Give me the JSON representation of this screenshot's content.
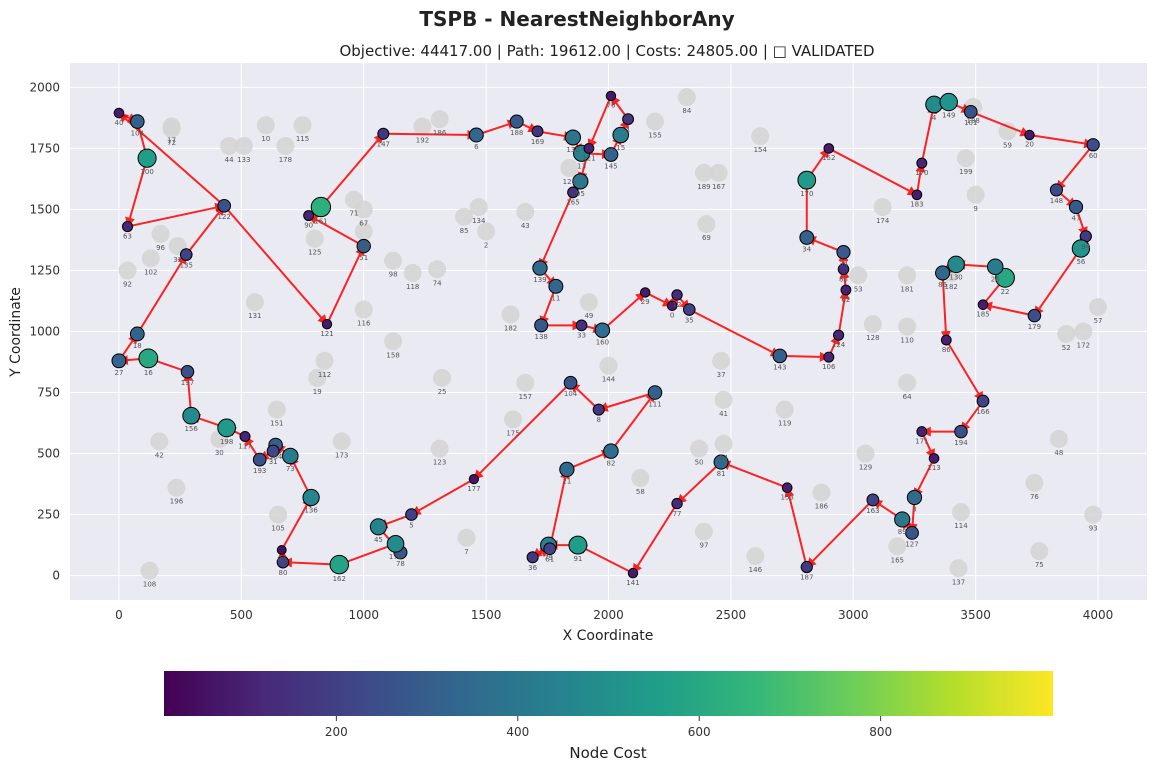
{
  "chart_data": {
    "type": "scatter",
    "title": "TSPB - NearestNeighborAny",
    "subtitle": "Objective: 44417.00 | Path: 19612.00 | Costs: 24805.00 | □ VALIDATED",
    "xlabel": "X Coordinate",
    "ylabel": "Y Coordinate",
    "xlim": [
      -200,
      4200
    ],
    "ylim": [
      -100,
      2100
    ],
    "xticks": [
      0,
      500,
      1000,
      1500,
      2000,
      2500,
      3000,
      3500,
      4000
    ],
    "yticks": [
      0,
      250,
      500,
      750,
      1000,
      1250,
      1500,
      1750,
      2000
    ],
    "grid": true,
    "colorbar": {
      "label": "Node Cost",
      "range": [
        10,
        990
      ],
      "ticks": [
        200,
        400,
        600,
        800
      ],
      "colormap": [
        "#440154",
        "#482878",
        "#3e4989",
        "#31688e",
        "#26828e",
        "#1f9e89",
        "#35b779",
        "#6ece58",
        "#b5de2b",
        "#fde725"
      ]
    },
    "path_color": "#ff0000",
    "unselected_color": "#d3d3d3",
    "unselected_nodes": [
      {
        "id": "17",
        "x": 215,
        "y": 1840,
        "cost": 0
      },
      {
        "id": "72",
        "x": 215,
        "y": 1830,
        "cost": 0
      },
      {
        "id": "44",
        "x": 450,
        "y": 1760,
        "cost": 0
      },
      {
        "id": "133",
        "x": 510,
        "y": 1760,
        "cost": 0
      },
      {
        "id": "10",
        "x": 600,
        "y": 1845,
        "cost": 0
      },
      {
        "id": "178",
        "x": 680,
        "y": 1760,
        "cost": 0
      },
      {
        "id": "115",
        "x": 750,
        "y": 1845,
        "cost": 0
      },
      {
        "id": "192",
        "x": 1240,
        "y": 1840,
        "cost": 0
      },
      {
        "id": "186",
        "x": 1310,
        "y": 1870,
        "cost": 0
      },
      {
        "id": "71",
        "x": 960,
        "y": 1540,
        "cost": 0
      },
      {
        "id": "67",
        "x": 1000,
        "y": 1500,
        "cost": 0
      },
      {
        "id": "120",
        "x": 1000,
        "y": 1410,
        "cost": 0
      },
      {
        "id": "125",
        "x": 800,
        "y": 1380,
        "cost": 0
      },
      {
        "id": "96",
        "x": 170,
        "y": 1400,
        "cost": 0
      },
      {
        "id": "32",
        "x": 240,
        "y": 1350,
        "cost": 0
      },
      {
        "id": "102",
        "x": 130,
        "y": 1300,
        "cost": 0
      },
      {
        "id": "92",
        "x": 35,
        "y": 1250,
        "cost": 0
      },
      {
        "id": "131",
        "x": 555,
        "y": 1120,
        "cost": 0
      },
      {
        "id": "98",
        "x": 1120,
        "y": 1290,
        "cost": 0
      },
      {
        "id": "118",
        "x": 1200,
        "y": 1240,
        "cost": 0
      },
      {
        "id": "74",
        "x": 1300,
        "y": 1255,
        "cost": 0
      },
      {
        "id": "116",
        "x": 1000,
        "y": 1090,
        "cost": 0
      },
      {
        "id": "158",
        "x": 1120,
        "y": 960,
        "cost": 0
      },
      {
        "id": "112",
        "x": 840,
        "y": 880,
        "cost": 0
      },
      {
        "id": "19",
        "x": 810,
        "y": 810,
        "cost": 0
      },
      {
        "id": "25",
        "x": 1320,
        "y": 810,
        "cost": 0
      },
      {
        "id": "151",
        "x": 645,
        "y": 680,
        "cost": 0
      },
      {
        "id": "173",
        "x": 910,
        "y": 550,
        "cost": 0
      },
      {
        "id": "42",
        "x": 165,
        "y": 550,
        "cost": 0
      },
      {
        "id": "30",
        "x": 410,
        "y": 560,
        "cost": 0
      },
      {
        "id": "196",
        "x": 235,
        "y": 360,
        "cost": 0
      },
      {
        "id": "105",
        "x": 650,
        "y": 250,
        "cost": 0
      },
      {
        "id": "108",
        "x": 125,
        "y": 20,
        "cost": 0
      },
      {
        "id": "123",
        "x": 1310,
        "y": 520,
        "cost": 0
      },
      {
        "id": "7",
        "x": 1420,
        "y": 155,
        "cost": 0
      },
      {
        "id": "175",
        "x": 1610,
        "y": 640,
        "cost": 0
      },
      {
        "id": "157",
        "x": 1660,
        "y": 790,
        "cost": 0
      },
      {
        "id": "85",
        "x": 1410,
        "y": 1470,
        "cost": 0
      },
      {
        "id": "134",
        "x": 1470,
        "y": 1510,
        "cost": 0
      },
      {
        "id": "2",
        "x": 1500,
        "y": 1410,
        "cost": 0
      },
      {
        "id": "43",
        "x": 1660,
        "y": 1490,
        "cost": 0
      },
      {
        "id": "182",
        "x": 1600,
        "y": 1070,
        "cost": 0
      },
      {
        "id": "49",
        "x": 1920,
        "y": 1120,
        "cost": 0
      },
      {
        "id": "144",
        "x": 2000,
        "y": 860,
        "cost": 0
      },
      {
        "id": "126",
        "x": 1840,
        "y": 1670,
        "cost": 0
      },
      {
        "id": "155",
        "x": 2190,
        "y": 1860,
        "cost": 0
      },
      {
        "id": "84",
        "x": 2320,
        "y": 1960,
        "cost": 0
      },
      {
        "id": "154",
        "x": 2620,
        "y": 1800,
        "cost": 0
      },
      {
        "id": "189",
        "x": 2390,
        "y": 1650,
        "cost": 0
      },
      {
        "id": "167",
        "x": 2450,
        "y": 1650,
        "cost": 0
      },
      {
        "id": "69",
        "x": 2400,
        "y": 1440,
        "cost": 0
      },
      {
        "id": "37",
        "x": 2460,
        "y": 880,
        "cost": 0
      },
      {
        "id": "41",
        "x": 2470,
        "y": 720,
        "cost": 0
      },
      {
        "id": "14",
        "x": 2470,
        "y": 540,
        "cost": 0
      },
      {
        "id": "50",
        "x": 2370,
        "y": 520,
        "cost": 0
      },
      {
        "id": "58",
        "x": 2130,
        "y": 400,
        "cost": 0
      },
      {
        "id": "97",
        "x": 2390,
        "y": 180,
        "cost": 0
      },
      {
        "id": "119",
        "x": 2720,
        "y": 680,
        "cost": 0
      },
      {
        "id": "146",
        "x": 2600,
        "y": 80,
        "cost": 0
      },
      {
        "id": "186b",
        "x": 2870,
        "y": 340,
        "cost": 0
      },
      {
        "id": "129",
        "x": 3050,
        "y": 500,
        "cost": 0
      },
      {
        "id": "165",
        "x": 3180,
        "y": 120,
        "cost": 0
      },
      {
        "id": "114",
        "x": 3440,
        "y": 260,
        "cost": 0
      },
      {
        "id": "137",
        "x": 3430,
        "y": 30,
        "cost": 0
      },
      {
        "id": "76",
        "x": 3740,
        "y": 380,
        "cost": 0
      },
      {
        "id": "75",
        "x": 3760,
        "y": 100,
        "cost": 0
      },
      {
        "id": "93",
        "x": 3980,
        "y": 250,
        "cost": 0
      },
      {
        "id": "48",
        "x": 3840,
        "y": 560,
        "cost": 0
      },
      {
        "id": "64",
        "x": 3220,
        "y": 790,
        "cost": 0
      },
      {
        "id": "128",
        "x": 3080,
        "y": 1030,
        "cost": 0
      },
      {
        "id": "110",
        "x": 3220,
        "y": 1020,
        "cost": 0
      },
      {
        "id": "181",
        "x": 3220,
        "y": 1230,
        "cost": 0
      },
      {
        "id": "53",
        "x": 3020,
        "y": 1230,
        "cost": 0
      },
      {
        "id": "174",
        "x": 3120,
        "y": 1510,
        "cost": 0
      },
      {
        "id": "199",
        "x": 3460,
        "y": 1710,
        "cost": 0
      },
      {
        "id": "9",
        "x": 3500,
        "y": 1560,
        "cost": 0
      },
      {
        "id": "59",
        "x": 3630,
        "y": 1820,
        "cost": 0
      },
      {
        "id": "188",
        "x": 3490,
        "y": 1920,
        "cost": 0
      },
      {
        "id": "57",
        "x": 4000,
        "y": 1100,
        "cost": 0
      },
      {
        "id": "52",
        "x": 3870,
        "y": 990,
        "cost": 0
      },
      {
        "id": "172",
        "x": 3940,
        "y": 1000,
        "cost": 0
      },
      {
        "id": "182b",
        "x": 3400,
        "y": 1240,
        "cost": 0
      }
    ],
    "tour": [
      {
        "id": "40",
        "x": 0,
        "y": 1895,
        "cost": 90
      },
      {
        "id": "104",
        "x": 75,
        "y": 1860,
        "cost": 310
      },
      {
        "id": "100",
        "x": 115,
        "y": 1710,
        "cost": 560
      },
      {
        "id": "63",
        "x": 35,
        "y": 1430,
        "cost": 120
      },
      {
        "id": "122",
        "x": 430,
        "y": 1515,
        "cost": 260
      },
      {
        "id": "121",
        "x": 850,
        "y": 1030,
        "cost": 80
      },
      {
        "id": "51",
        "x": 1000,
        "y": 1350,
        "cost": 300
      },
      {
        "id": "90",
        "x": 775,
        "y": 1475,
        "cost": 110
      },
      {
        "id": "161",
        "x": 825,
        "y": 1510,
        "cost": 630
      },
      {
        "id": "147",
        "x": 1080,
        "y": 1810,
        "cost": 170
      },
      {
        "id": "6",
        "x": 1460,
        "y": 1805,
        "cost": 330
      },
      {
        "id": "188c",
        "x": 1625,
        "y": 1860,
        "cost": 280
      },
      {
        "id": "169",
        "x": 1710,
        "y": 1820,
        "cost": 160
      },
      {
        "id": "132",
        "x": 1855,
        "y": 1795,
        "cost": 390
      },
      {
        "id": "13",
        "x": 1890,
        "y": 1730,
        "cost": 450
      },
      {
        "id": "145",
        "x": 2010,
        "y": 1725,
        "cost": 320
      },
      {
        "id": "15",
        "x": 2050,
        "y": 1805,
        "cost": 420
      },
      {
        "id": "1",
        "x": 2080,
        "y": 1870,
        "cost": 160
      },
      {
        "id": "70",
        "x": 2010,
        "y": 1965,
        "cost": 80
      },
      {
        "id": "121b",
        "x": 1920,
        "y": 1750,
        "cost": 100
      },
      {
        "id": "95",
        "x": 1885,
        "y": 1615,
        "cost": 400
      },
      {
        "id": "165b",
        "x": 1855,
        "y": 1570,
        "cost": 150
      },
      {
        "id": "139",
        "x": 1720,
        "y": 1260,
        "cost": 350
      },
      {
        "id": "11",
        "x": 1785,
        "y": 1185,
        "cost": 330
      },
      {
        "id": "138",
        "x": 1725,
        "y": 1025,
        "cost": 280
      },
      {
        "id": "33",
        "x": 1890,
        "y": 1025,
        "cost": 150
      },
      {
        "id": "160",
        "x": 1975,
        "y": 1005,
        "cost": 360
      },
      {
        "id": "29",
        "x": 2150,
        "y": 1160,
        "cost": 80
      },
      {
        "id": "0",
        "x": 2260,
        "y": 1105,
        "cost": 80
      },
      {
        "id": "12",
        "x": 2280,
        "y": 1150,
        "cost": 130
      },
      {
        "id": "35",
        "x": 2330,
        "y": 1090,
        "cost": 200
      },
      {
        "id": "143",
        "x": 2700,
        "y": 900,
        "cost": 310
      },
      {
        "id": "106",
        "x": 2900,
        "y": 895,
        "cost": 110
      },
      {
        "id": "124",
        "x": 2940,
        "y": 985,
        "cost": 120
      },
      {
        "id": "62",
        "x": 2970,
        "y": 1170,
        "cost": 100
      },
      {
        "id": "83",
        "x": 2960,
        "y": 1255,
        "cost": 140
      },
      {
        "id": "34",
        "x": 2960,
        "y": 1325,
        "cost": 290
      },
      {
        "id": "34b",
        "x": 2810,
        "y": 1385,
        "cost": 320
      },
      {
        "id": "170",
        "x": 2810,
        "y": 1620,
        "cost": 540
      },
      {
        "id": "152",
        "x": 2900,
        "y": 1750,
        "cost": 90
      },
      {
        "id": "183",
        "x": 3260,
        "y": 1560,
        "cost": 90
      },
      {
        "id": "170b",
        "x": 3280,
        "y": 1690,
        "cost": 110
      },
      {
        "id": "4",
        "x": 3330,
        "y": 1930,
        "cost": 480
      },
      {
        "id": "149",
        "x": 3390,
        "y": 1940,
        "cost": 520
      },
      {
        "id": "101",
        "x": 3480,
        "y": 1900,
        "cost": 260
      },
      {
        "id": "20",
        "x": 3720,
        "y": 1805,
        "cost": 80
      },
      {
        "id": "60",
        "x": 3980,
        "y": 1765,
        "cost": 240
      },
      {
        "id": "148",
        "x": 3830,
        "y": 1580,
        "cost": 230
      },
      {
        "id": "47",
        "x": 3910,
        "y": 1510,
        "cost": 290
      },
      {
        "id": "94",
        "x": 3950,
        "y": 1390,
        "cost": 180
      },
      {
        "id": "56",
        "x": 3930,
        "y": 1340,
        "cost": 520
      },
      {
        "id": "179",
        "x": 3740,
        "y": 1065,
        "cost": 250
      },
      {
        "id": "185",
        "x": 3530,
        "y": 1110,
        "cost": 90
      },
      {
        "id": "22",
        "x": 3620,
        "y": 1220,
        "cost": 600
      },
      {
        "id": "26",
        "x": 3580,
        "y": 1265,
        "cost": 420
      },
      {
        "id": "130",
        "x": 3420,
        "y": 1275,
        "cost": 470
      },
      {
        "id": "86b",
        "x": 3365,
        "y": 1240,
        "cost": 340
      },
      {
        "id": "86",
        "x": 3380,
        "y": 965,
        "cost": 100
      },
      {
        "id": "166",
        "x": 3530,
        "y": 715,
        "cost": 210
      },
      {
        "id": "194",
        "x": 3440,
        "y": 590,
        "cost": 250
      },
      {
        "id": "171",
        "x": 3280,
        "y": 590,
        "cost": 100
      },
      {
        "id": "113",
        "x": 3330,
        "y": 480,
        "cost": 90
      },
      {
        "id": "3",
        "x": 3250,
        "y": 320,
        "cost": 350
      },
      {
        "id": "127",
        "x": 3240,
        "y": 175,
        "cost": 270
      },
      {
        "id": "89",
        "x": 3200,
        "y": 230,
        "cost": 400
      },
      {
        "id": "163",
        "x": 3080,
        "y": 310,
        "cost": 210
      },
      {
        "id": "187",
        "x": 2810,
        "y": 35,
        "cost": 180
      },
      {
        "id": "153",
        "x": 2730,
        "y": 360,
        "cost": 90
      },
      {
        "id": "81",
        "x": 2460,
        "y": 465,
        "cost": 340
      },
      {
        "id": "77",
        "x": 2280,
        "y": 295,
        "cost": 130
      },
      {
        "id": "141",
        "x": 2100,
        "y": 10,
        "cost": 80
      },
      {
        "id": "91",
        "x": 1875,
        "y": 125,
        "cost": 550
      },
      {
        "id": "79",
        "x": 1755,
        "y": 125,
        "cost": 440
      },
      {
        "id": "36",
        "x": 1690,
        "y": 75,
        "cost": 170
      },
      {
        "id": "61",
        "x": 1760,
        "y": 110,
        "cost": 210
      },
      {
        "id": "21",
        "x": 1830,
        "y": 435,
        "cost": 350
      },
      {
        "id": "82",
        "x": 2010,
        "y": 510,
        "cost": 360
      },
      {
        "id": "111",
        "x": 2190,
        "y": 750,
        "cost": 310
      },
      {
        "id": "8",
        "x": 1960,
        "y": 680,
        "cost": 170
      },
      {
        "id": "104b",
        "x": 1845,
        "y": 790,
        "cost": 260
      },
      {
        "id": "177",
        "x": 1450,
        "y": 395,
        "cost": 70
      },
      {
        "id": "5",
        "x": 1195,
        "y": 250,
        "cost": 200
      },
      {
        "id": "45",
        "x": 1060,
        "y": 200,
        "cost": 450
      },
      {
        "id": "78",
        "x": 1150,
        "y": 95,
        "cost": 280
      },
      {
        "id": "175b",
        "x": 1130,
        "y": 130,
        "cost": 480
      },
      {
        "id": "162",
        "x": 900,
        "y": 45,
        "cost": 580
      },
      {
        "id": "80",
        "x": 670,
        "y": 55,
        "cost": 200
      },
      {
        "id": "80b",
        "x": 665,
        "y": 105,
        "cost": 50
      },
      {
        "id": "136",
        "x": 785,
        "y": 320,
        "cost": 460
      },
      {
        "id": "73",
        "x": 700,
        "y": 490,
        "cost": 420
      },
      {
        "id": "164",
        "x": 640,
        "y": 535,
        "cost": 310
      },
      {
        "id": "31",
        "x": 630,
        "y": 510,
        "cost": 220
      },
      {
        "id": "193",
        "x": 575,
        "y": 475,
        "cost": 260
      },
      {
        "id": "117",
        "x": 515,
        "y": 570,
        "cost": 110
      },
      {
        "id": "198",
        "x": 440,
        "y": 605,
        "cost": 540
      },
      {
        "id": "156",
        "x": 295,
        "y": 655,
        "cost": 480
      },
      {
        "id": "197",
        "x": 280,
        "y": 835,
        "cost": 250
      },
      {
        "id": "16",
        "x": 120,
        "y": 890,
        "cost": 600
      },
      {
        "id": "27",
        "x": 0,
        "y": 880,
        "cost": 330
      },
      {
        "id": "18",
        "x": 75,
        "y": 990,
        "cost": 320
      },
      {
        "id": "135",
        "x": 275,
        "y": 1315,
        "cost": 200
      },
      {
        "id": "122b",
        "x": 430,
        "y": 1515,
        "cost": 260
      },
      {
        "id": "40b",
        "x": 0,
        "y": 1895,
        "cost": 90
      }
    ]
  }
}
